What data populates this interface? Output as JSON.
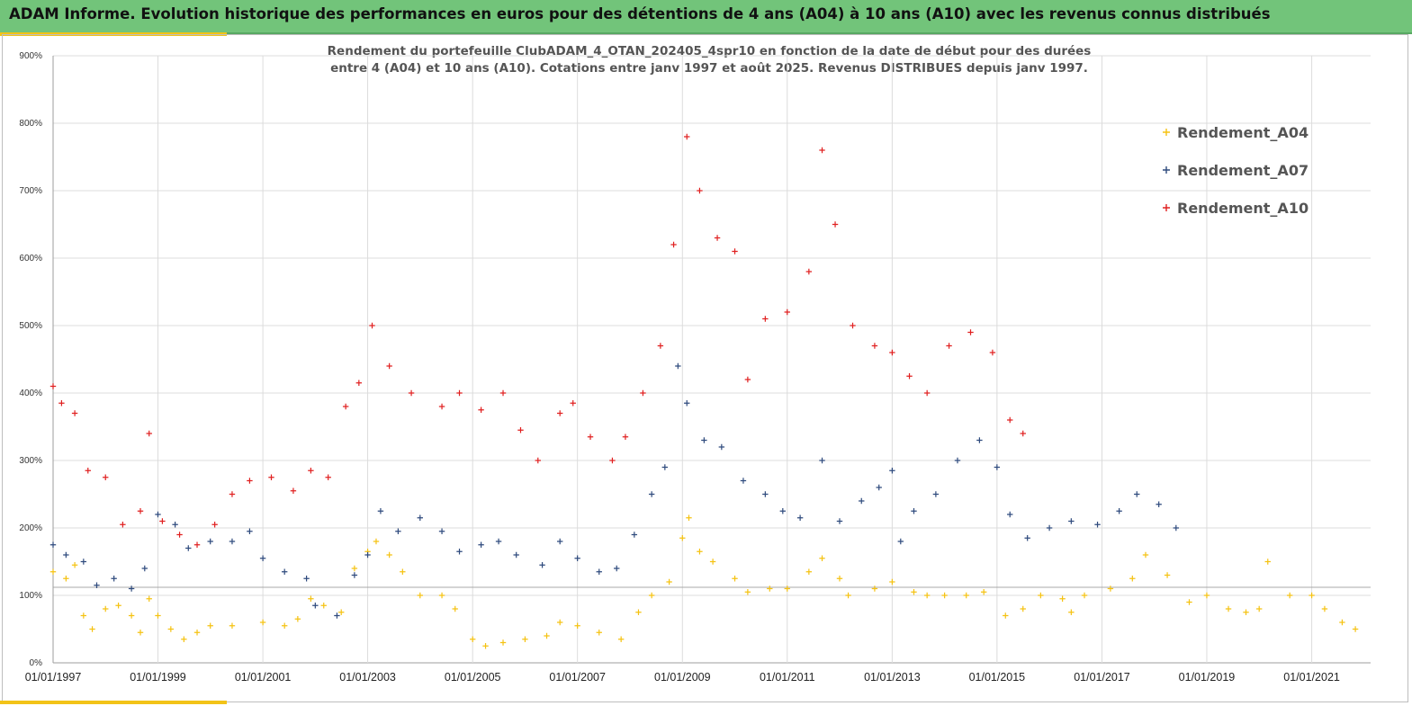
{
  "banner": {
    "title": "ADAM Informe. Evolution historique des performances en euros pour des détentions de 4 ans (A04) à 10 ans (A10) avec les revenus connus distribués",
    "bg_color": "#72c47a",
    "accent_color": "#f2c318"
  },
  "chart_data": {
    "type": "scatter",
    "title_line1": "Rendement du portefeuille ClubADAM_4_OTAN_202405_4spr10  en fonction de la date de début pour des durées",
    "title_line2": "entre 4 (A04) et 10 ans (A10). Cotations entre janv 1997 et août 2025. Revenus DISTRIBUES depuis janv 1997.",
    "xlabel": "",
    "ylabel": "",
    "xlim": [
      "1997-01-01",
      "2022-02-15"
    ],
    "ylim": [
      0,
      900
    ],
    "y_ticks": [
      "0%",
      "100%",
      "200%",
      "300%",
      "400%",
      "500%",
      "600%",
      "700%",
      "800%",
      "900%"
    ],
    "x_ticks": [
      {
        "date": "1997-01-01",
        "label": "01/01/1997"
      },
      {
        "date": "1999-01-01",
        "label": "01/01/1999"
      },
      {
        "date": "2001-01-01",
        "label": "01/01/2001"
      },
      {
        "date": "2003-01-01",
        "label": "01/01/2003"
      },
      {
        "date": "2005-01-01",
        "label": "01/01/2005"
      },
      {
        "date": "2007-01-01",
        "label": "01/01/2007"
      },
      {
        "date": "2009-01-01",
        "label": "01/01/2009"
      },
      {
        "date": "2011-01-01",
        "label": "01/01/2011"
      },
      {
        "date": "2013-01-01",
        "label": "01/01/2013"
      },
      {
        "date": "2015-01-01",
        "label": "01/01/2015"
      },
      {
        "date": "2017-01-01",
        "label": "01/01/2017"
      },
      {
        "date": "2019-01-01",
        "label": "01/01/2019"
      },
      {
        "date": "2021-01-01",
        "label": "01/01/2021"
      }
    ],
    "reference_line": 112,
    "grid": true,
    "legend_position": "top-right",
    "marker": "+",
    "series": [
      {
        "name": "Rendement_A04",
        "color": "#f5c211",
        "points": [
          [
            "1997-01-01",
            135
          ],
          [
            "1997-04-01",
            125
          ],
          [
            "1997-06-01",
            145
          ],
          [
            "1997-08-01",
            70
          ],
          [
            "1997-10-01",
            50
          ],
          [
            "1998-01-01",
            80
          ],
          [
            "1998-04-01",
            85
          ],
          [
            "1998-07-01",
            70
          ],
          [
            "1998-09-01",
            45
          ],
          [
            "1998-11-01",
            95
          ],
          [
            "1999-01-01",
            70
          ],
          [
            "1999-04-01",
            50
          ],
          [
            "1999-07-01",
            35
          ],
          [
            "1999-10-01",
            45
          ],
          [
            "2000-01-01",
            55
          ],
          [
            "2000-06-01",
            55
          ],
          [
            "2001-01-01",
            60
          ],
          [
            "2001-06-01",
            55
          ],
          [
            "2001-09-01",
            65
          ],
          [
            "2001-12-01",
            95
          ],
          [
            "2002-03-01",
            85
          ],
          [
            "2002-07-01",
            75
          ],
          [
            "2002-10-01",
            140
          ],
          [
            "2003-01-01",
            165
          ],
          [
            "2003-03-01",
            180
          ],
          [
            "2003-06-01",
            160
          ],
          [
            "2003-09-01",
            135
          ],
          [
            "2004-01-01",
            100
          ],
          [
            "2004-06-01",
            100
          ],
          [
            "2004-09-01",
            80
          ],
          [
            "2005-01-01",
            35
          ],
          [
            "2005-04-01",
            25
          ],
          [
            "2005-08-01",
            30
          ],
          [
            "2006-01-01",
            35
          ],
          [
            "2006-06-01",
            40
          ],
          [
            "2006-09-01",
            60
          ],
          [
            "2007-01-01",
            55
          ],
          [
            "2007-06-01",
            45
          ],
          [
            "2007-11-01",
            35
          ],
          [
            "2008-03-01",
            75
          ],
          [
            "2008-06-01",
            100
          ],
          [
            "2008-10-01",
            120
          ],
          [
            "2009-01-01",
            185
          ],
          [
            "2009-02-15",
            215
          ],
          [
            "2009-05-01",
            165
          ],
          [
            "2009-08-01",
            150
          ],
          [
            "2010-01-01",
            125
          ],
          [
            "2010-04-01",
            105
          ],
          [
            "2010-09-01",
            110
          ],
          [
            "2011-01-01",
            110
          ],
          [
            "2011-06-01",
            135
          ],
          [
            "2011-09-01",
            155
          ],
          [
            "2012-01-01",
            125
          ],
          [
            "2012-03-01",
            100
          ],
          [
            "2012-09-01",
            110
          ],
          [
            "2013-01-01",
            120
          ],
          [
            "2013-06-01",
            105
          ],
          [
            "2013-09-01",
            100
          ],
          [
            "2014-01-01",
            100
          ],
          [
            "2014-06-01",
            100
          ],
          [
            "2014-10-01",
            105
          ],
          [
            "2015-03-01",
            70
          ],
          [
            "2015-07-01",
            80
          ],
          [
            "2015-11-01",
            100
          ],
          [
            "2016-04-01",
            95
          ],
          [
            "2016-06-01",
            75
          ],
          [
            "2016-09-01",
            100
          ],
          [
            "2017-03-01",
            110
          ],
          [
            "2017-08-01",
            125
          ],
          [
            "2017-11-01",
            160
          ],
          [
            "2018-04-01",
            130
          ],
          [
            "2018-09-01",
            90
          ],
          [
            "2019-01-01",
            100
          ],
          [
            "2019-06-01",
            80
          ],
          [
            "2019-10-01",
            75
          ],
          [
            "2020-01-01",
            80
          ],
          [
            "2020-03-01",
            150
          ],
          [
            "2020-08-01",
            100
          ],
          [
            "2021-01-01",
            100
          ],
          [
            "2021-04-01",
            80
          ],
          [
            "2021-08-01",
            60
          ],
          [
            "2021-11-01",
            50
          ]
        ]
      },
      {
        "name": "Rendement_A07",
        "color": "#2e4a7d",
        "points": [
          [
            "1997-01-01",
            175
          ],
          [
            "1997-04-01",
            160
          ],
          [
            "1997-08-01",
            150
          ],
          [
            "1997-11-01",
            115
          ],
          [
            "1998-03-01",
            125
          ],
          [
            "1998-07-01",
            110
          ],
          [
            "1998-10-01",
            140
          ],
          [
            "1999-01-01",
            220
          ],
          [
            "1999-05-01",
            205
          ],
          [
            "1999-08-01",
            170
          ],
          [
            "2000-01-01",
            180
          ],
          [
            "2000-06-01",
            180
          ],
          [
            "2000-10-01",
            195
          ],
          [
            "2001-01-01",
            155
          ],
          [
            "2001-06-01",
            135
          ],
          [
            "2001-11-01",
            125
          ],
          [
            "2002-01-01",
            85
          ],
          [
            "2002-06-01",
            70
          ],
          [
            "2002-10-01",
            130
          ],
          [
            "2003-01-01",
            160
          ],
          [
            "2003-04-01",
            225
          ],
          [
            "2003-08-01",
            195
          ],
          [
            "2004-01-01",
            215
          ],
          [
            "2004-06-01",
            195
          ],
          [
            "2004-10-01",
            165
          ],
          [
            "2005-03-01",
            175
          ],
          [
            "2005-07-01",
            180
          ],
          [
            "2005-11-01",
            160
          ],
          [
            "2006-05-01",
            145
          ],
          [
            "2006-09-01",
            180
          ],
          [
            "2007-01-01",
            155
          ],
          [
            "2007-06-01",
            135
          ],
          [
            "2007-10-01",
            140
          ],
          [
            "2008-02-01",
            190
          ],
          [
            "2008-06-01",
            250
          ],
          [
            "2008-09-01",
            290
          ],
          [
            "2008-12-01",
            440
          ],
          [
            "2009-02-01",
            385
          ],
          [
            "2009-06-01",
            330
          ],
          [
            "2009-10-01",
            320
          ],
          [
            "2010-03-01",
            270
          ],
          [
            "2010-08-01",
            250
          ],
          [
            "2010-12-01",
            225
          ],
          [
            "2011-04-01",
            215
          ],
          [
            "2011-09-01",
            300
          ],
          [
            "2012-01-01",
            210
          ],
          [
            "2012-06-01",
            240
          ],
          [
            "2012-10-01",
            260
          ],
          [
            "2013-01-01",
            285
          ],
          [
            "2013-03-01",
            180
          ],
          [
            "2013-06-01",
            225
          ],
          [
            "2013-11-01",
            250
          ],
          [
            "2014-04-01",
            300
          ],
          [
            "2014-09-01",
            330
          ],
          [
            "2015-01-01",
            290
          ],
          [
            "2015-04-01",
            220
          ],
          [
            "2015-08-01",
            185
          ],
          [
            "2016-01-01",
            200
          ],
          [
            "2016-06-01",
            210
          ],
          [
            "2016-12-01",
            205
          ],
          [
            "2017-05-01",
            225
          ],
          [
            "2017-09-01",
            250
          ],
          [
            "2018-02-01",
            235
          ],
          [
            "2018-06-01",
            200
          ]
        ]
      },
      {
        "name": "Rendement_A10",
        "color": "#e02020",
        "points": [
          [
            "1997-01-01",
            410
          ],
          [
            "1997-03-01",
            385
          ],
          [
            "1997-06-01",
            370
          ],
          [
            "1997-09-01",
            285
          ],
          [
            "1998-01-01",
            275
          ],
          [
            "1998-05-01",
            205
          ],
          [
            "1998-09-01",
            225
          ],
          [
            "1998-11-01",
            340
          ],
          [
            "1999-02-01",
            210
          ],
          [
            "1999-06-01",
            190
          ],
          [
            "1999-10-01",
            175
          ],
          [
            "2000-02-01",
            205
          ],
          [
            "2000-06-01",
            250
          ],
          [
            "2000-10-01",
            270
          ],
          [
            "2001-03-01",
            275
          ],
          [
            "2001-08-01",
            255
          ],
          [
            "2001-12-01",
            285
          ],
          [
            "2002-04-01",
            275
          ],
          [
            "2002-08-01",
            380
          ],
          [
            "2002-11-01",
            415
          ],
          [
            "2003-02-01",
            500
          ],
          [
            "2003-06-01",
            440
          ],
          [
            "2003-11-01",
            400
          ],
          [
            "2004-06-01",
            380
          ],
          [
            "2004-10-01",
            400
          ],
          [
            "2005-03-01",
            375
          ],
          [
            "2005-08-01",
            400
          ],
          [
            "2005-12-01",
            345
          ],
          [
            "2006-04-01",
            300
          ],
          [
            "2006-09-01",
            370
          ],
          [
            "2006-12-01",
            385
          ],
          [
            "2007-04-01",
            335
          ],
          [
            "2007-09-01",
            300
          ],
          [
            "2007-12-01",
            335
          ],
          [
            "2008-04-01",
            400
          ],
          [
            "2008-08-01",
            470
          ],
          [
            "2008-11-01",
            620
          ],
          [
            "2009-02-01",
            780
          ],
          [
            "2009-05-01",
            700
          ],
          [
            "2009-09-01",
            630
          ],
          [
            "2010-01-01",
            610
          ],
          [
            "2010-04-01",
            420
          ],
          [
            "2010-08-01",
            510
          ],
          [
            "2011-01-01",
            520
          ],
          [
            "2011-06-01",
            580
          ],
          [
            "2011-09-01",
            760
          ],
          [
            "2011-12-01",
            650
          ],
          [
            "2012-04-01",
            500
          ],
          [
            "2012-09-01",
            470
          ],
          [
            "2013-01-01",
            460
          ],
          [
            "2013-05-01",
            425
          ],
          [
            "2013-09-01",
            400
          ],
          [
            "2014-02-01",
            470
          ],
          [
            "2014-07-01",
            490
          ],
          [
            "2014-12-01",
            460
          ],
          [
            "2015-04-01",
            360
          ],
          [
            "2015-07-01",
            340
          ]
        ]
      }
    ]
  }
}
